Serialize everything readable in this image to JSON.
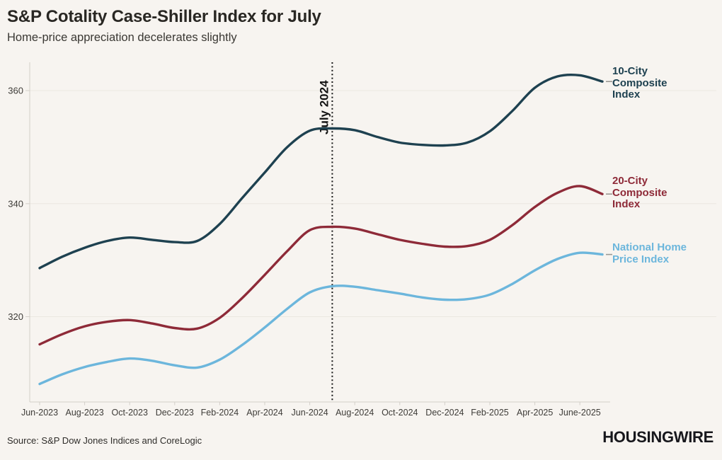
{
  "header": {
    "title": "S&P Cotality Case-Shiller Index for July",
    "subtitle": "Home-price appreciation decelerates slightly"
  },
  "chart_data": {
    "type": "line",
    "x": [
      "Jun-2023",
      "Jul-2023",
      "Aug-2023",
      "Sep-2023",
      "Oct-2023",
      "Nov-2023",
      "Dec-2023",
      "Jan-2024",
      "Feb-2024",
      "Mar-2024",
      "Apr-2024",
      "May-2024",
      "Jun-2024",
      "Jul-2024",
      "Aug-2024",
      "Sep-2024",
      "Oct-2024",
      "Nov-2024",
      "Dec-2024",
      "Jan-2025",
      "Feb-2025",
      "Mar-2025",
      "Apr-2025",
      "May-2025",
      "Jun-2025",
      "Jul-2025"
    ],
    "x_tick_labels": [
      {
        "index": 0,
        "label": "Jun-2023"
      },
      {
        "index": 2,
        "label": "Aug-2023"
      },
      {
        "index": 4,
        "label": "Oct-2023"
      },
      {
        "index": 6,
        "label": "Dec-2023"
      },
      {
        "index": 8,
        "label": "Feb-2024"
      },
      {
        "index": 10,
        "label": "Apr-2024"
      },
      {
        "index": 12,
        "label": "Jun-2024"
      },
      {
        "index": 14,
        "label": "Aug-2024"
      },
      {
        "index": 16,
        "label": "Oct-2024"
      },
      {
        "index": 18,
        "label": "Dec-2024"
      },
      {
        "index": 20,
        "label": "Feb-2025"
      },
      {
        "index": 22,
        "label": "Apr-2025"
      },
      {
        "index": 24,
        "label": "June-2025"
      }
    ],
    "y_ticks": [
      320,
      340,
      360
    ],
    "ylim": [
      305,
      365
    ],
    "grid": "horizontal",
    "legend_position": "right",
    "annotation": {
      "label": "July 2024",
      "month_index": 13,
      "style": "dotted-vertical-line"
    },
    "series": [
      {
        "name": "10-City Composite Index",
        "legend": "10-City\nComposite\nIndex",
        "color": "#1e4150",
        "values": [
          328.6,
          330.6,
          332.2,
          333.4,
          334.0,
          333.6,
          333.2,
          333.4,
          336.4,
          341.0,
          345.5,
          350.0,
          352.9,
          353.3,
          353.0,
          351.8,
          350.8,
          350.4,
          350.3,
          350.8,
          352.8,
          356.4,
          360.5,
          362.5,
          362.7,
          361.6
        ]
      },
      {
        "name": "20-City Composite Index",
        "legend": "20-City\nComposite\nIndex",
        "color": "#8e2a38",
        "values": [
          315.1,
          316.9,
          318.3,
          319.1,
          319.4,
          318.8,
          318.0,
          317.9,
          319.8,
          323.3,
          327.4,
          331.6,
          335.3,
          335.9,
          335.6,
          334.6,
          333.6,
          332.9,
          332.4,
          332.5,
          333.6,
          336.2,
          339.4,
          341.9,
          343.1,
          341.7
        ]
      },
      {
        "name": "National Home Price Index",
        "legend": "National Home\nPrice Index",
        "color": "#6cb6dc",
        "values": [
          308.1,
          309.8,
          311.1,
          312.0,
          312.6,
          312.2,
          311.4,
          311.0,
          312.4,
          315.0,
          318.1,
          321.4,
          324.3,
          325.4,
          325.3,
          324.7,
          324.1,
          323.4,
          323.0,
          323.1,
          323.9,
          325.8,
          328.2,
          330.2,
          331.3,
          331.0
        ]
      }
    ],
    "colors": {
      "background": "#f7f4f0",
      "axis": "#d3cfc9",
      "grid": "#ebe7e1",
      "tick_text": "#3e3c38",
      "annotation": "#131313",
      "leader_dash": "#9b9893"
    }
  },
  "footer": {
    "source": "Source: S&P Dow Jones Indices and CoreLogic",
    "brand": "HOUSINGWIRE"
  }
}
